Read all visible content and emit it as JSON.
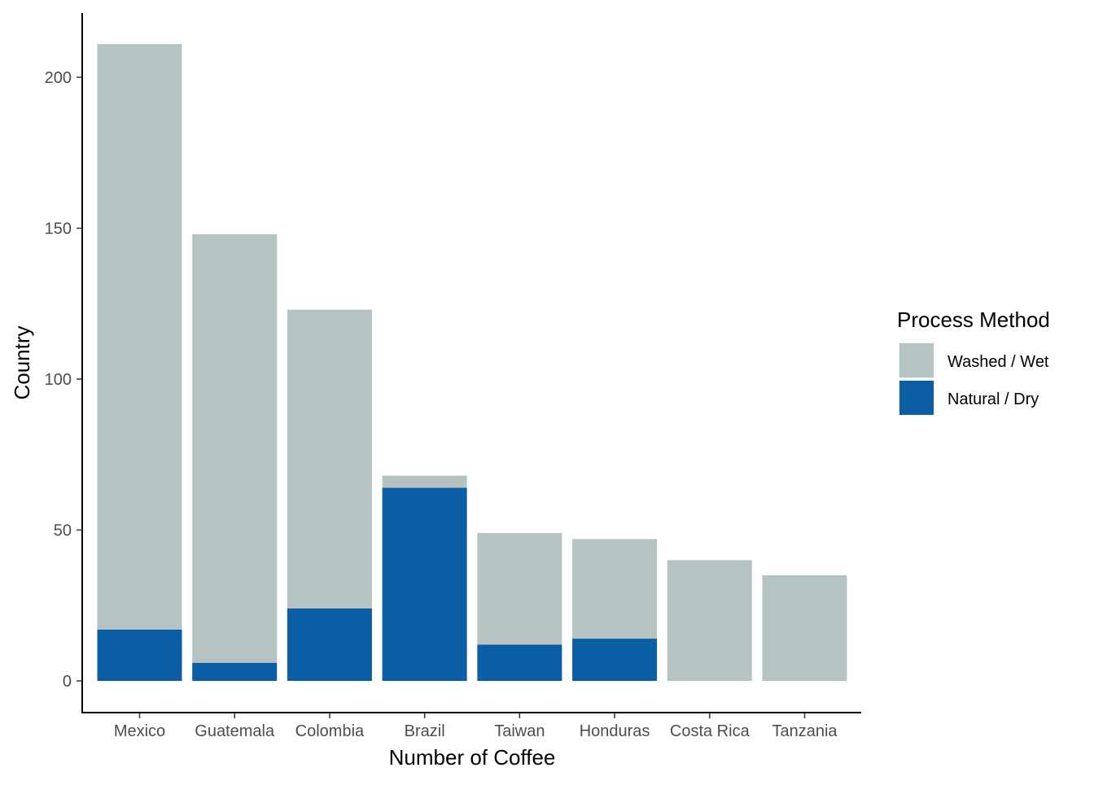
{
  "chart_data": {
    "type": "bar",
    "stacked": true,
    "categories": [
      "Mexico",
      "Guatemala",
      "Colombia",
      "Brazil",
      "Taiwan",
      "Honduras",
      "Costa Rica",
      "Tanzania"
    ],
    "series": [
      {
        "name": "Natural / Dry",
        "values": [
          17,
          6,
          24,
          64,
          12,
          14,
          0,
          0
        ],
        "color": "#0b5ea3"
      },
      {
        "name": "Washed / Wet",
        "values": [
          194,
          142,
          99,
          4,
          37,
          33,
          40,
          35
        ],
        "color": "#b5c3c3"
      }
    ],
    "xlabel": "Number of Coffee",
    "ylabel": "Country",
    "ylim": [
      0,
      220
    ],
    "yticks": [
      0,
      50,
      100,
      150,
      200
    ],
    "grid": false,
    "legend": {
      "title": "Process Method",
      "placement": "right",
      "entries": [
        {
          "label": "Washed / Wet",
          "color": "#b5c3c3"
        },
        {
          "label": "Natural / Dry",
          "color": "#0b5ea3"
        }
      ]
    }
  }
}
